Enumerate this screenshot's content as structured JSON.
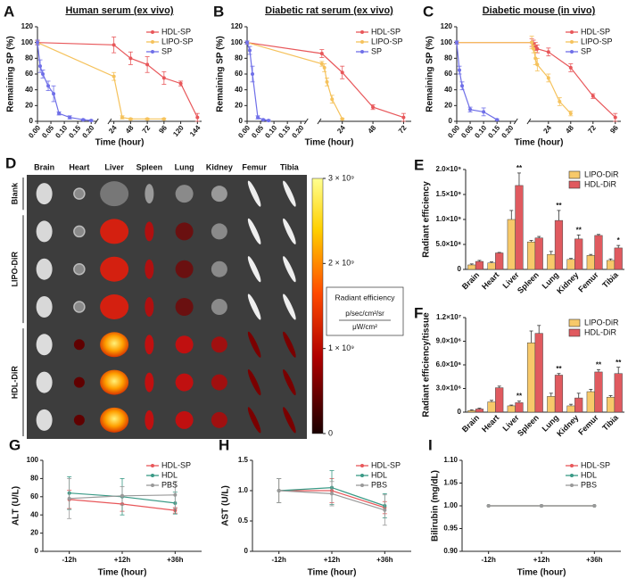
{
  "chart_data": [
    {
      "panel": "A",
      "type": "line",
      "title": "Human serum (ex vivo)",
      "xlabel": "Time (hour)",
      "ylabel": "Remaining SP (%)",
      "xlim": [
        0,
        150
      ],
      "xbreak": [
        0.22,
        18
      ],
      "xticks": [
        {
          "value": 0,
          "label": "0.00"
        },
        0.05,
        {
          "value": 0.1,
          "label": "0.10"
        },
        0.15,
        {
          "value": 0.2,
          "label": "0.20"
        },
        24,
        48,
        72,
        96,
        120,
        144
      ],
      "ylim": [
        0,
        120
      ],
      "yticks": [
        0,
        20,
        40,
        60,
        80,
        100,
        120
      ],
      "legend": "upper right",
      "series": [
        {
          "name": "HDL-SP",
          "color": "#e8575a",
          "x": [
            0,
            24,
            48,
            72,
            96,
            120,
            144
          ],
          "values": [
            100,
            97,
            80,
            72,
            55,
            48,
            5
          ],
          "errors": [
            3,
            10,
            8,
            10,
            8,
            3,
            5
          ]
        },
        {
          "name": "LIPO-SP",
          "color": "#f5c25c",
          "x": [
            0,
            24,
            36,
            48,
            72,
            96
          ],
          "values": [
            100,
            57,
            5,
            3,
            3,
            3
          ],
          "errors": [
            2,
            5,
            2,
            1,
            1,
            1
          ]
        },
        {
          "name": "SP",
          "color": "#6f6fe8",
          "x": [
            0,
            0.01,
            0.02,
            0.04,
            0.06,
            0.08,
            0.12,
            0.17,
            0.2
          ],
          "values": [
            100,
            70,
            60,
            45,
            35,
            10,
            5,
            2,
            1
          ],
          "errors": [
            3,
            8,
            5,
            6,
            10,
            2,
            2,
            1,
            1
          ]
        }
      ]
    },
    {
      "panel": "B",
      "type": "line",
      "title": "Diabetic rat serum (ex vivo)",
      "xlabel": "Time (hour)",
      "ylabel": "Remaining SP (%)",
      "xlim": [
        0,
        78
      ],
      "xbreak": [
        0.22,
        6
      ],
      "xticks": [
        {
          "value": 0,
          "label": "0.00"
        },
        0.05,
        {
          "value": 0.1,
          "label": "0.10"
        },
        0.15,
        {
          "value": 0.2,
          "label": "0.20"
        },
        24,
        48,
        72
      ],
      "ylim": [
        0,
        120
      ],
      "yticks": [
        0,
        20,
        40,
        60,
        80,
        100,
        120
      ],
      "legend": "upper right",
      "series": [
        {
          "name": "HDL-SP",
          "color": "#e8575a",
          "x": [
            0,
            8,
            24,
            48,
            72
          ],
          "values": [
            100,
            86,
            62,
            18,
            5
          ],
          "errors": [
            2,
            5,
            8,
            3,
            5
          ]
        },
        {
          "name": "LIPO-SP",
          "color": "#f5c25c",
          "x": [
            0,
            8,
            10,
            12,
            16,
            24
          ],
          "values": [
            100,
            73,
            68,
            50,
            28,
            3
          ],
          "errors": [
            2,
            3,
            5,
            5,
            5,
            1
          ]
        },
        {
          "name": "SP",
          "color": "#6f6fe8",
          "x": [
            0,
            0.01,
            0.02,
            0.04,
            0.06,
            0.08
          ],
          "values": [
            100,
            90,
            60,
            5,
            2,
            1
          ],
          "errors": [
            2,
            5,
            10,
            2,
            1,
            1
          ]
        }
      ]
    },
    {
      "panel": "C",
      "type": "line",
      "title": "Diabetic mouse (in vivo)",
      "xlabel": "Time (hour)",
      "ylabel": "Remaining SP (%)",
      "xlim": [
        0,
        102
      ],
      "xbreak": [
        0.22,
        3
      ],
      "xticks": [
        {
          "value": 0,
          "label": "0.00"
        },
        0.05,
        {
          "value": 0.1,
          "label": "0.10"
        },
        0.15,
        {
          "value": 0.2,
          "label": "0.20"
        },
        24,
        48,
        72,
        96
      ],
      "ylim": [
        0,
        120
      ],
      "yticks": [
        0,
        20,
        40,
        60,
        80,
        100,
        120
      ],
      "legend": "upper right",
      "series": [
        {
          "name": "HDL-SP",
          "color": "#e8575a",
          "x": [
            0,
            6,
            8,
            10,
            12,
            24,
            48,
            72,
            96
          ],
          "values": [
            100,
            100,
            98,
            95,
            92,
            88,
            68,
            32,
            5
          ],
          "errors": [
            2,
            5,
            5,
            5,
            5,
            5,
            5,
            3,
            5
          ]
        },
        {
          "name": "LIPO-SP",
          "color": "#f5c25c",
          "x": [
            0,
            6,
            8,
            10,
            12,
            24,
            36,
            48
          ],
          "values": [
            100,
            100,
            92,
            80,
            72,
            55,
            25,
            10
          ],
          "errors": [
            2,
            8,
            5,
            8,
            8,
            5,
            5,
            3
          ]
        },
        {
          "name": "SP",
          "color": "#6f6fe8",
          "x": [
            0,
            0.01,
            0.02,
            0.05,
            0.1,
            0.15
          ],
          "values": [
            100,
            65,
            45,
            15,
            12,
            2
          ],
          "errors": [
            2,
            5,
            5,
            3,
            5,
            1
          ]
        }
      ]
    },
    {
      "panel": "D",
      "type": "image",
      "columns": [
        "Brain",
        "Heart",
        "Liver",
        "Spleen",
        "Lung",
        "Kidney",
        "Femur",
        "Tibia"
      ],
      "rows": [
        "Blank",
        "LIPO-DiR",
        "HDL-DiR"
      ],
      "colorbar": {
        "lim": [
          0,
          3000000000.0
        ],
        "ticks": [
          0,
          {
            "value": 1000000000.0,
            "label": "1 × 10⁹"
          },
          {
            "value": 2000000000.0,
            "label": "2 × 10⁹"
          },
          {
            "value": 3000000000.0,
            "label": "3 × 10⁹"
          }
        ],
        "label": "Radiant efficiency",
        "unit_numerator": "p/sec/cm²/sr",
        "unit_denominator": "μW/cm²"
      }
    },
    {
      "panel": "E",
      "type": "bar",
      "ylabel": "Radiant efficiency",
      "categories": [
        "Brain",
        "Heart",
        "Liver",
        "Spleen",
        "Lung",
        "Kidney",
        "Femur",
        "Tibia"
      ],
      "ylim": [
        0,
        2000000000.0
      ],
      "yticks": [
        0,
        {
          "value": 500000000.0,
          "label": "5.0×10⁸"
        },
        {
          "value": 1000000000.0,
          "label": "1.0×10⁹"
        },
        {
          "value": 1500000000.0,
          "label": "1.5×10⁹"
        },
        {
          "value": 2000000000.0,
          "label": "2.0×10⁹"
        }
      ],
      "legend": "upper right",
      "series": [
        {
          "name": "LIPO-DiR",
          "color": "#f7c96a",
          "values": [
            90000000.0,
            130000000.0,
            1000000000.0,
            550000000.0,
            300000000.0,
            200000000.0,
            280000000.0,
            180000000.0
          ],
          "errors": [
            20000000.0,
            20000000.0,
            180000000.0,
            30000000.0,
            60000000.0,
            20000000.0,
            20000000.0,
            30000000.0
          ]
        },
        {
          "name": "HDL-DiR",
          "color": "#e05a5f",
          "values": [
            160000000.0,
            330000000.0,
            1680000000.0,
            630000000.0,
            980000000.0,
            610000000.0,
            680000000.0,
            430000000.0
          ],
          "errors": [
            20000000.0,
            10000000.0,
            250000000.0,
            30000000.0,
            200000000.0,
            80000000.0,
            20000000.0,
            50000000.0
          ]
        }
      ],
      "annotations": [
        {
          "category": "Liver",
          "text": "**"
        },
        {
          "category": "Lung",
          "text": "**"
        },
        {
          "category": "Kidney",
          "text": "**"
        },
        {
          "category": "Tibia",
          "text": "*"
        }
      ]
    },
    {
      "panel": "F",
      "type": "bar",
      "ylabel": "Radiant efficiency/tissue",
      "categories": [
        "Brain",
        "Heart",
        "Liver",
        "Spleen",
        "Lung",
        "Kidney",
        "Femur",
        "Tibia"
      ],
      "ylim": [
        0,
        12000000.0
      ],
      "yticks": [
        0,
        {
          "value": 3000000.0,
          "label": "3.0×10⁶"
        },
        {
          "value": 6000000.0,
          "label": "6.0×10⁶"
        },
        {
          "value": 9000000.0,
          "label": "9.0×10⁶"
        },
        {
          "value": 12000000.0,
          "label": "1.2×10⁷"
        }
      ],
      "legend": "upper right",
      "series": [
        {
          "name": "LIPO-DiR",
          "color": "#f7c96a",
          "values": [
            200000.0,
            1300000.0,
            800000.0,
            8800000.0,
            2000000.0,
            800000.0,
            2600000.0,
            1900000.0
          ],
          "errors": [
            100000.0,
            200000.0,
            100000.0,
            1500000.0,
            400000.0,
            200000.0,
            300000.0,
            200000.0
          ]
        },
        {
          "name": "HDL-DiR",
          "color": "#e05a5f",
          "values": [
            400000.0,
            3100000.0,
            1200000.0,
            10000000.0,
            4700000.0,
            1800000.0,
            5100000.0,
            4900000.0
          ],
          "errors": [
            100000.0,
            200000.0,
            200000.0,
            1000000.0,
            200000.0,
            600000.0,
            300000.0,
            800000.0
          ]
        }
      ],
      "annotations": [
        {
          "category": "Liver",
          "text": "**"
        },
        {
          "category": "Lung",
          "text": "**"
        },
        {
          "category": "Femur",
          "text": "**"
        },
        {
          "category": "Tibia",
          "text": "**"
        }
      ]
    },
    {
      "panel": "G",
      "type": "line",
      "xlabel": "Time (hour)",
      "ylabel": "ALT (U/L)",
      "categories": [
        "-12h",
        "+12h",
        "+36h"
      ],
      "ylim": [
        0,
        100
      ],
      "yticks": [
        0,
        20,
        40,
        60,
        80,
        100
      ],
      "legend": "upper right",
      "series": [
        {
          "name": "HDL-SP",
          "color": "#e8575a",
          "values": [
            57,
            52,
            45
          ],
          "errors": [
            10,
            8,
            3
          ]
        },
        {
          "name": "HDL",
          "color": "#3a9a86",
          "values": [
            64,
            60,
            53
          ],
          "errors": [
            18,
            20,
            12
          ]
        },
        {
          "name": "PBS",
          "color": "#999999",
          "values": [
            58,
            61,
            62
          ],
          "errors": [
            22,
            10,
            15
          ]
        }
      ]
    },
    {
      "panel": "H",
      "type": "line",
      "xlabel": "Time (hour)",
      "ylabel": "AST (U/L)",
      "categories": [
        "-12h",
        "+12h",
        "+36h"
      ],
      "ylim": [
        0,
        1.5
      ],
      "yticks": [
        0,
        0.5,
        {
          "value": 1,
          "label": "1.0"
        },
        1.5
      ],
      "legend": "upper right",
      "series": [
        {
          "name": "HDL-SP",
          "color": "#e8575a",
          "values": [
            1.0,
            1.0,
            0.72
          ],
          "errors": [
            0.2,
            0.2,
            0.1
          ]
        },
        {
          "name": "HDL",
          "color": "#3a9a86",
          "values": [
            1.0,
            1.05,
            0.75
          ],
          "errors": [
            0.2,
            0.28,
            0.2
          ]
        },
        {
          "name": "PBS",
          "color": "#999999",
          "values": [
            1.0,
            0.95,
            0.68
          ],
          "errors": [
            0.2,
            0.2,
            0.25
          ]
        }
      ]
    },
    {
      "panel": "I",
      "type": "line",
      "xlabel": "Time (hour)",
      "ylabel": "Bilirubin (mg/dL)",
      "categories": [
        "-12h",
        "+12h",
        "+36h"
      ],
      "ylim": [
        0.9,
        1.1
      ],
      "yticks": [
        {
          "value": 0.9,
          "label": "0.90"
        },
        0.95,
        {
          "value": 1,
          "label": "1.00"
        },
        1.05,
        {
          "value": 1.1,
          "label": "1.10"
        }
      ],
      "legend": "upper right",
      "series": [
        {
          "name": "HDL-SP",
          "color": "#e8575a",
          "values": [
            1,
            1,
            1
          ]
        },
        {
          "name": "HDL",
          "color": "#3a9a86",
          "values": [
            1,
            1,
            1
          ]
        },
        {
          "name": "PBS",
          "color": "#999999",
          "values": [
            1,
            1,
            1
          ]
        }
      ]
    }
  ]
}
